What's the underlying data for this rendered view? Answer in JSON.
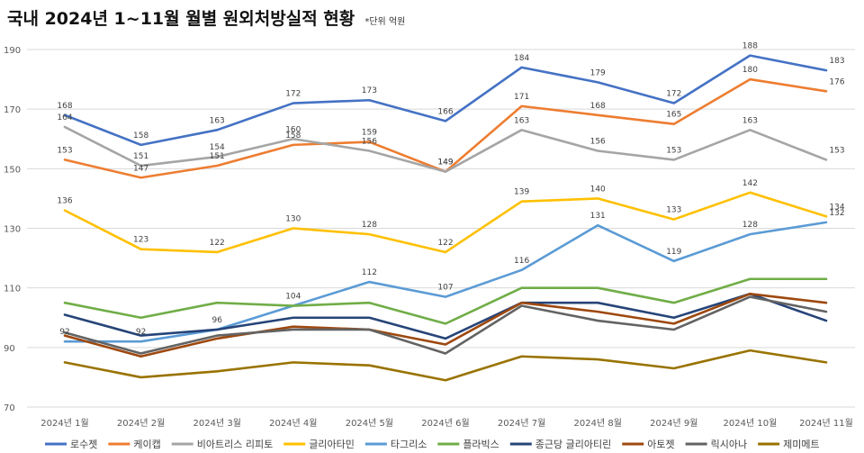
{
  "title": "국내 2024년 1~11월 월별 원외처방실적 현황",
  "note": "*단위 억원",
  "chart_data": {
    "type": "line",
    "title": "국내 2024년 1~11월 월별 원외처방실적 현황",
    "unit_note": "*단위 억원",
    "categories": [
      "2024년 1월",
      "2024년 2월",
      "2024년 3월",
      "2024년 4월",
      "2024년 5월",
      "2024년 6월",
      "2024년 7월",
      "2024년 8월",
      "2024년 9월",
      "2024년 10월",
      "2024년 11월"
    ],
    "ylim": [
      70,
      190
    ],
    "yticks": [
      "70",
      "90",
      "110",
      "130",
      "150",
      "170",
      "190"
    ],
    "grid": true,
    "legend_position": "bottom",
    "series": [
      {
        "name": "로수젯",
        "color": "#4472C4",
        "labeled": true,
        "values": [
          168,
          158,
          163,
          172,
          173,
          166,
          184,
          179,
          172,
          188,
          183
        ]
      },
      {
        "name": "케이캡",
        "color": "#ED7D31",
        "labeled": true,
        "values": [
          153,
          147,
          151,
          158,
          159,
          149,
          171,
          168,
          165,
          180,
          176
        ]
      },
      {
        "name": "비아트리스 리피토",
        "color": "#A5A5A5",
        "labeled": true,
        "values": [
          164,
          151,
          154,
          160,
          156,
          149,
          163,
          156,
          153,
          163,
          153
        ]
      },
      {
        "name": "글리아타민",
        "color": "#FFC000",
        "labeled": true,
        "values": [
          136,
          123,
          122,
          130,
          128,
          122,
          139,
          140,
          133,
          142,
          134
        ]
      },
      {
        "name": "타그리소",
        "color": "#5B9BD5",
        "labeled": true,
        "values": [
          92,
          92,
          96,
          104,
          112,
          107,
          116,
          131,
          119,
          128,
          132
        ]
      },
      {
        "name": "플라빅스",
        "color": "#70AD47",
        "labeled": false,
        "values": [
          105,
          100,
          105,
          104,
          105,
          98,
          110,
          110,
          105,
          113,
          113
        ]
      },
      {
        "name": "종근당 글리아티린",
        "color": "#264478",
        "labeled": false,
        "values": [
          101,
          94,
          96,
          100,
          100,
          93,
          105,
          105,
          100,
          108,
          99
        ]
      },
      {
        "name": "아토젯",
        "color": "#9E480E",
        "labeled": false,
        "values": [
          94,
          87,
          93,
          97,
          96,
          91,
          105,
          102,
          98,
          108,
          105
        ]
      },
      {
        "name": "릭시아나",
        "color": "#636363",
        "labeled": false,
        "values": [
          95,
          88,
          94,
          96,
          96,
          88,
          104,
          99,
          96,
          107,
          102
        ]
      },
      {
        "name": "제미메트",
        "color": "#997300",
        "labeled": false,
        "values": [
          85,
          80,
          82,
          85,
          84,
          79,
          87,
          86,
          83,
          89,
          85
        ]
      }
    ]
  }
}
